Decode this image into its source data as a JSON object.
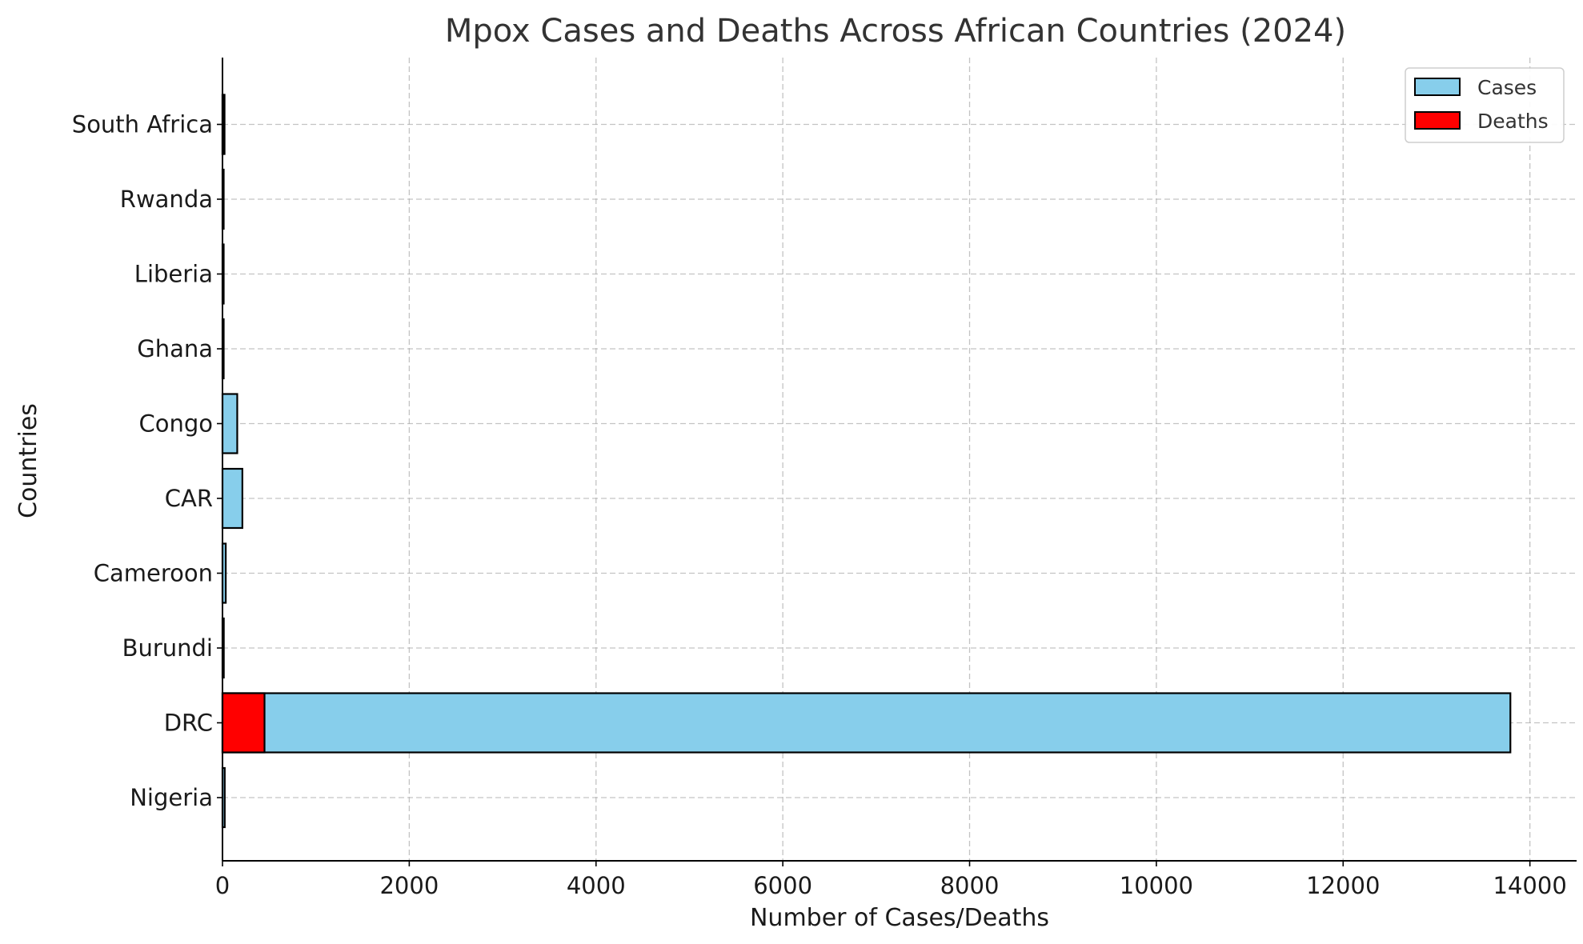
{
  "chart_data": {
    "type": "bar",
    "orientation": "horizontal",
    "stacking": "overlay",
    "title": "Mpox Cases and Deaths Across African Countries (2024)",
    "xlabel": "Number of Cases/Deaths",
    "ylabel": "Countries",
    "categories": [
      "Nigeria",
      "DRC",
      "Burundi",
      "Cameroon",
      "CAR",
      "Congo",
      "Ghana",
      "Liberia",
      "Rwanda",
      "South Africa"
    ],
    "series": [
      {
        "name": "Cases",
        "color": "#87ceeb",
        "values": [
          24,
          13791,
          14,
          35,
          213,
          158,
          4,
          4,
          2,
          22
        ]
      },
      {
        "name": "Deaths",
        "color": "#ff0000",
        "values": [
          0,
          450,
          0,
          0,
          0,
          0,
          0,
          0,
          0,
          3
        ]
      }
    ],
    "xlim": [
      0,
      14500
    ],
    "xticks": [
      0,
      2000,
      4000,
      6000,
      8000,
      10000,
      12000,
      14000
    ],
    "grid": true,
    "legend_position": "top-right"
  }
}
